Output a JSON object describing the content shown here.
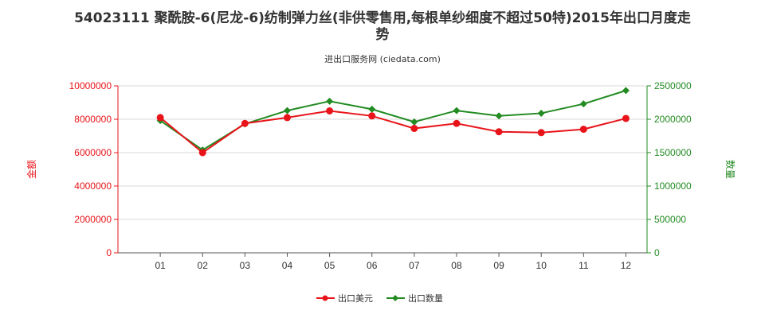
{
  "title_line1": "54023111 聚酰胺-6(尼龙-6)纺制弹力丝(非供零售用,每根单纱细度不超过50特)2015年出口月度走",
  "title_line2": "势",
  "subtitle": "进出口服务网 (ciedata.com)",
  "colors": {
    "left_axis": "#e8141a",
    "right_axis": "#228b22",
    "series_amount": "#e8141a",
    "series_quantity": "#228b22",
    "grid": "#d9d9d9"
  },
  "chart_data": {
    "type": "line",
    "categories": [
      "01",
      "02",
      "03",
      "04",
      "05",
      "06",
      "07",
      "08",
      "09",
      "10",
      "11",
      "12"
    ],
    "ylabel_left": "金额",
    "ylabel_right": "数量",
    "ylim_left": [
      0,
      10000000
    ],
    "ylim_right": [
      0,
      2500000
    ],
    "yticks_left": [
      "0",
      "2000000",
      "4000000",
      "6000000",
      "8000000",
      "10000000"
    ],
    "yticks_right": [
      "0",
      "500000",
      "1000000",
      "1500000",
      "2000000",
      "2500000"
    ],
    "series": [
      {
        "name": "出口美元",
        "axis": "left",
        "values": [
          8100000,
          6000000,
          7750000,
          8100000,
          8500000,
          8200000,
          7450000,
          7750000,
          7250000,
          7200000,
          7400000,
          8050000
        ]
      },
      {
        "name": "出口数量",
        "axis": "right",
        "values": [
          1980000,
          1540000,
          1930000,
          2130000,
          2270000,
          2150000,
          1960000,
          2130000,
          2050000,
          2090000,
          2230000,
          2430000
        ]
      }
    ],
    "grid": true,
    "legend_position": "bottom-center"
  }
}
